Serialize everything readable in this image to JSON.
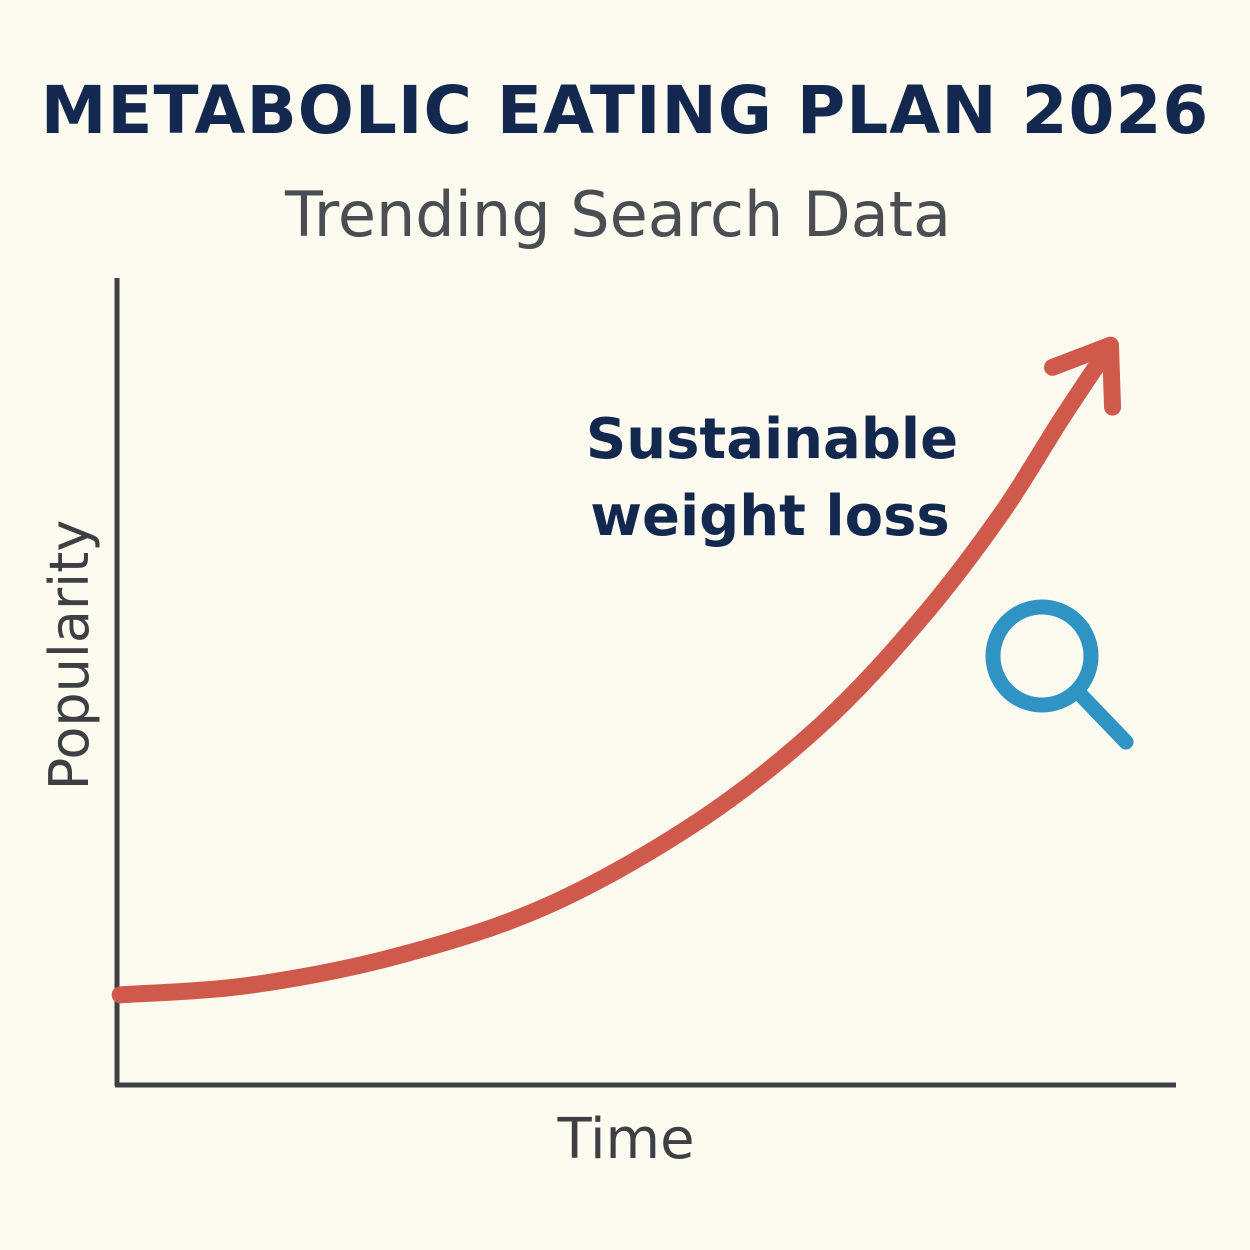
{
  "chart_data": {
    "type": "line",
    "title": "METABOLIC EATING PLAN 2026",
    "subtitle": "Trending Search Data",
    "xlabel": "Time",
    "ylabel": "Popularity",
    "xlim": [
      0,
      100
    ],
    "ylim": [
      0,
      100
    ],
    "grid": false,
    "x": [
      0.3,
      12.6,
      26.7,
      40.9,
      55.1,
      66.5,
      75.9,
      83.5,
      89.2,
      93.9
    ],
    "series": [
      {
        "values": [
          11.2,
          12.4,
          16.1,
          22.4,
          32.9,
          44.7,
          57.8,
          70.8,
          82.6,
          91.9
        ],
        "color": "#cf5a4c",
        "end_marker": "arrow"
      }
    ],
    "annotations": [
      {
        "text_line1": "Sustainable",
        "text_line2": "weight loss",
        "color": "#13284f"
      }
    ],
    "icon": {
      "name": "search-icon",
      "color": "#2f93c4"
    },
    "axis_color": "#3d3f44",
    "background": "#fdfbf0"
  }
}
